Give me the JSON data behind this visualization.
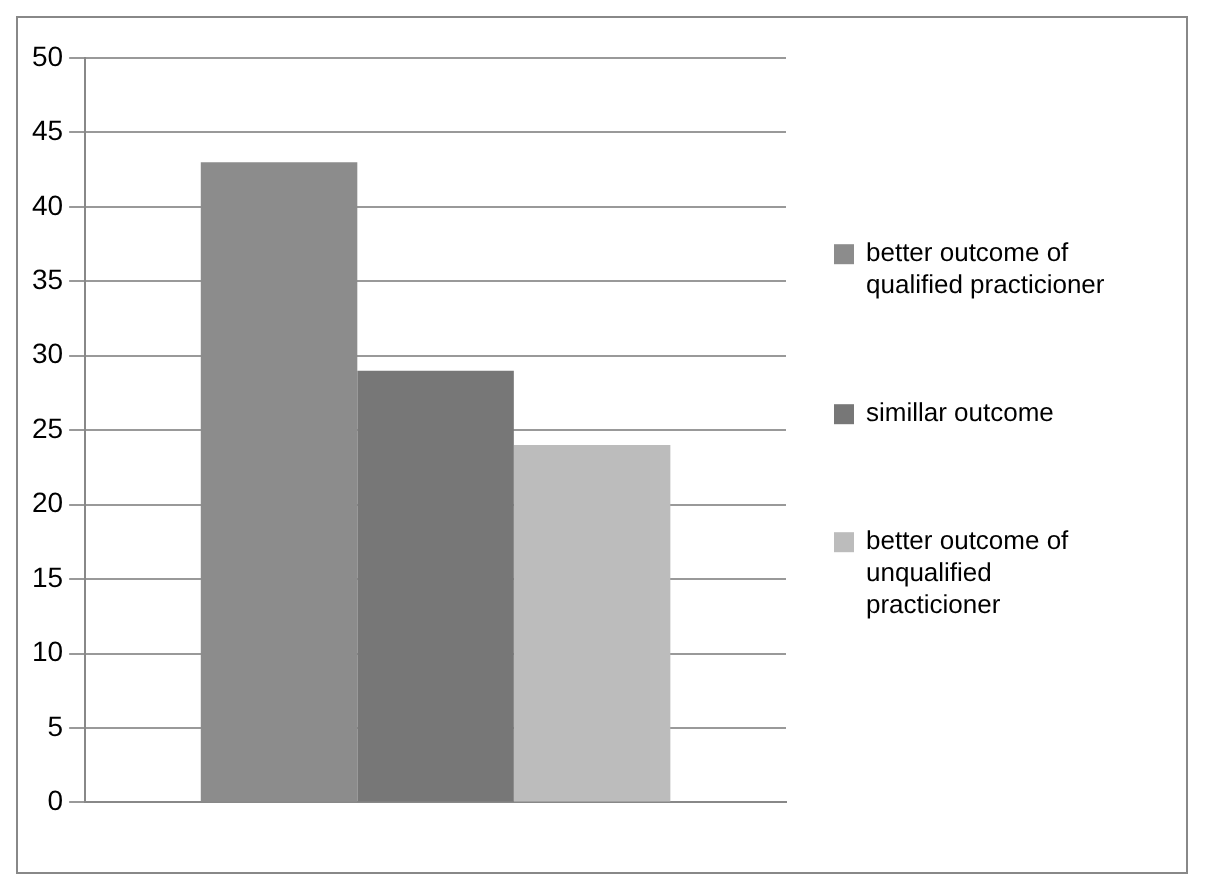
{
  "chart_data": {
    "type": "bar",
    "categories": [
      null
    ],
    "series": [
      {
        "name": "better outcome of qualified practicioner",
        "color": "#8c8c8c",
        "values": [
          43
        ]
      },
      {
        "name": "simillar outcome",
        "color": "#777777",
        "values": [
          29
        ]
      },
      {
        "name": "better outcome of unqualified practicioner",
        "color": "#bcbcbc",
        "values": [
          24
        ]
      }
    ],
    "ylim": [
      0,
      50
    ],
    "yticks": [
      0,
      5,
      10,
      15,
      20,
      25,
      30,
      35,
      40,
      45,
      50
    ],
    "grid": "y",
    "legend": "right"
  }
}
